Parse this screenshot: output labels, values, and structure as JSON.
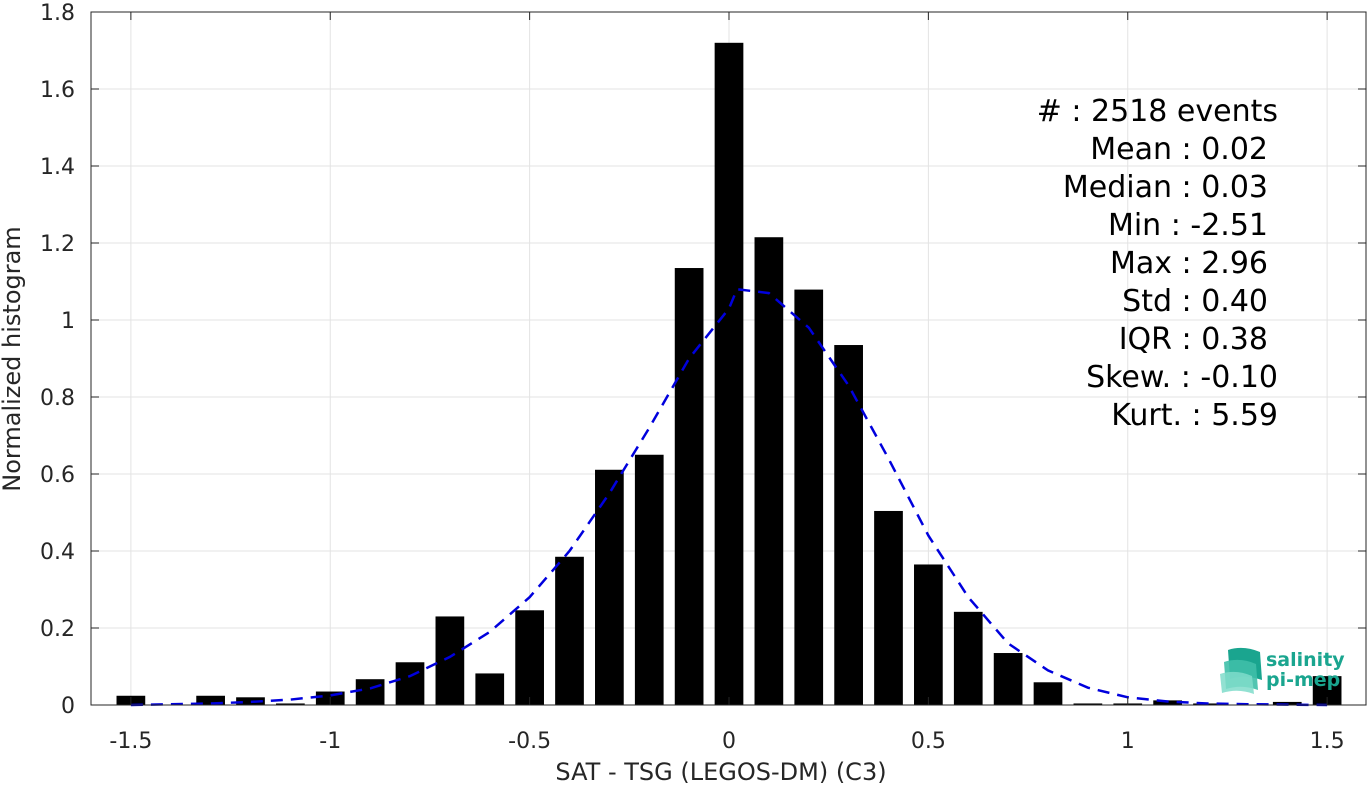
{
  "chart_data": {
    "type": "bar",
    "xlabel": "SAT - TSG (LEGOS-DM) (C3)",
    "ylabel": "Normalized histogram",
    "xlim": [
      -1.6,
      1.6
    ],
    "ylim": [
      0,
      1.8
    ],
    "xticks": [
      -1.5,
      -1,
      -0.5,
      0,
      0.5,
      1,
      1.5
    ],
    "xtick_labels": [
      "-1.5",
      "-1",
      "-0.5",
      "0",
      "0.5",
      "1",
      "1.5"
    ],
    "yticks": [
      0,
      0.2,
      0.4,
      0.6,
      0.8,
      1,
      1.2,
      1.4,
      1.6,
      1.8
    ],
    "ytick_labels": [
      "0",
      "0.2",
      "0.4",
      "0.6",
      "0.8",
      "1",
      "1.2",
      "1.4",
      "1.6",
      "1.8"
    ],
    "grid": true,
    "bin_width": 0.1,
    "bars": {
      "x": [
        -1.5,
        -1.4,
        -1.3,
        -1.2,
        -1.1,
        -1.0,
        -0.9,
        -0.8,
        -0.7,
        -0.6,
        -0.5,
        -0.4,
        -0.3,
        -0.2,
        -0.1,
        0.0,
        0.1,
        0.2,
        0.3,
        0.4,
        0.5,
        0.6,
        0.7,
        0.8,
        0.9,
        1.0,
        1.1,
        1.2,
        1.3,
        1.4,
        1.5
      ],
      "values": [
        0.024,
        0.0,
        0.024,
        0.02,
        0.004,
        0.035,
        0.067,
        0.111,
        0.23,
        0.082,
        0.246,
        0.385,
        0.611,
        0.65,
        1.135,
        1.72,
        1.215,
        1.079,
        0.935,
        0.504,
        0.365,
        0.242,
        0.135,
        0.059,
        0.004,
        0.004,
        0.012,
        0.004,
        0.0,
        0.008,
        0.075
      ],
      "color": "#000000"
    },
    "fit_curve": {
      "style": "dashed",
      "color": "#0000dd",
      "x": [
        -1.5,
        -1.4,
        -1.3,
        -1.2,
        -1.1,
        -1.0,
        -0.9,
        -0.8,
        -0.7,
        -0.6,
        -0.5,
        -0.4,
        -0.3,
        -0.2,
        -0.1,
        0.0,
        0.02,
        0.1,
        0.2,
        0.3,
        0.4,
        0.5,
        0.6,
        0.7,
        0.8,
        0.9,
        1.0,
        1.1,
        1.2,
        1.3,
        1.4,
        1.5
      ],
      "y": [
        0.0,
        0.002,
        0.004,
        0.008,
        0.014,
        0.025,
        0.043,
        0.075,
        0.125,
        0.19,
        0.28,
        0.4,
        0.55,
        0.72,
        0.9,
        1.03,
        1.08,
        1.07,
        0.98,
        0.83,
        0.64,
        0.44,
        0.28,
        0.16,
        0.09,
        0.045,
        0.02,
        0.009,
        0.004,
        0.002,
        0.001,
        0.0
      ]
    },
    "annotations": [
      {
        "label": "#",
        "text": "#  : 2518 events"
      },
      {
        "label": "Mean",
        "text": "Mean : 0.02"
      },
      {
        "label": "Median",
        "text": "Median : 0.03"
      },
      {
        "label": "Min",
        "text": "Min : -2.51"
      },
      {
        "label": "Max",
        "text": "Max : 2.96"
      },
      {
        "label": "Std",
        "text": "Std : 0.40"
      },
      {
        "label": "IQR",
        "text": "IQR : 0.38"
      },
      {
        "label": "Skew.",
        "text": "Skew. : -0.10"
      },
      {
        "label": "Kurt.",
        "text": "Kurt. : 5.59"
      }
    ]
  },
  "logo": {
    "line1": "salinity",
    "line2": "pi-mep",
    "colors": [
      "#1aa58f",
      "#5fd3c0"
    ]
  }
}
